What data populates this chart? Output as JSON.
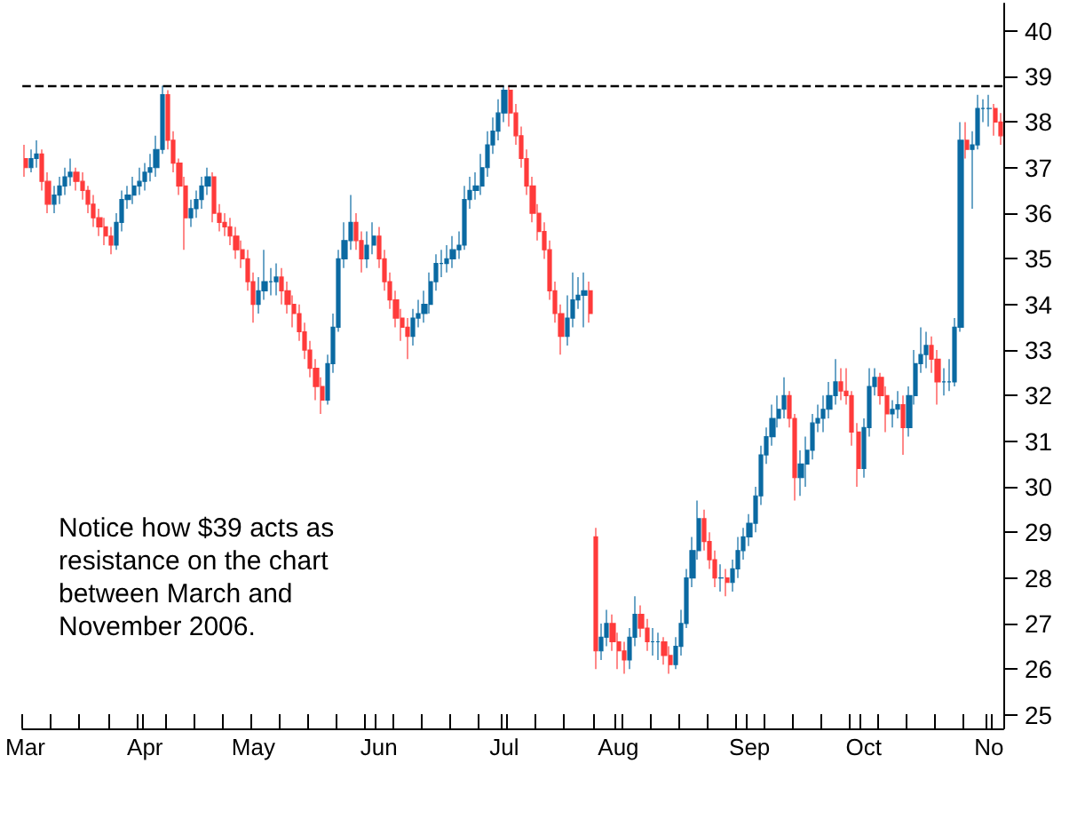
{
  "chart_data": {
    "type": "candlestick",
    "annotations": [
      "Notice how $39 acts as resistance on the chart between March and November 2006."
    ],
    "categories": [
      "Mar",
      null,
      null,
      null,
      null,
      null,
      null,
      null,
      null,
      null,
      null,
      null,
      null,
      null,
      null,
      null,
      null,
      null,
      null,
      null,
      null,
      "Apr",
      null,
      null,
      null,
      null,
      null,
      null,
      null,
      null,
      null,
      null,
      null,
      null,
      null,
      null,
      null,
      null,
      null,
      null,
      "May",
      null,
      null,
      null,
      null,
      null,
      null,
      null,
      null,
      null,
      null,
      null,
      null,
      null,
      null,
      null,
      null,
      null,
      null,
      null,
      null,
      null,
      "Jun",
      null,
      null,
      null,
      null,
      null,
      null,
      null,
      null,
      null,
      null,
      null,
      null,
      null,
      null,
      null,
      null,
      null,
      null,
      null,
      null,
      null,
      "Jul",
      null,
      null,
      null,
      null,
      null,
      null,
      null,
      null,
      null,
      null,
      null,
      null,
      null,
      null,
      null,
      null,
      null,
      null,
      null,
      "Aug",
      null,
      null,
      null,
      null,
      null,
      null,
      null,
      null,
      null,
      null,
      null,
      null,
      null,
      null,
      null,
      null,
      null,
      null,
      null,
      null,
      null,
      null,
      "Sep",
      null,
      null,
      null,
      null,
      null,
      null,
      null,
      null,
      null,
      null,
      null,
      null,
      null,
      null,
      null,
      null,
      null,
      null,
      null,
      "Oct",
      null,
      null,
      null,
      null,
      null,
      null,
      null,
      null,
      null,
      null,
      null,
      null,
      null,
      null,
      null,
      null,
      null,
      null,
      null,
      null,
      null,
      "No",
      null,
      null
    ],
    "ohlc": [
      [
        37.2,
        37.5,
        36.8,
        37.0
      ],
      [
        37.0,
        37.4,
        36.9,
        37.2
      ],
      [
        37.2,
        37.6,
        37.0,
        37.3
      ],
      [
        37.3,
        37.4,
        36.5,
        36.7
      ],
      [
        36.7,
        36.9,
        36.0,
        36.2
      ],
      [
        36.2,
        36.6,
        36.0,
        36.4
      ],
      [
        36.4,
        36.8,
        36.2,
        36.6
      ],
      [
        36.6,
        37.0,
        36.4,
        36.8
      ],
      [
        36.8,
        37.2,
        36.6,
        36.9
      ],
      [
        36.9,
        37.0,
        36.5,
        36.7
      ],
      [
        36.7,
        36.9,
        36.3,
        36.5
      ],
      [
        36.5,
        36.6,
        36.0,
        36.2
      ],
      [
        36.2,
        36.4,
        35.7,
        35.9
      ],
      [
        35.9,
        36.1,
        35.5,
        35.7
      ],
      [
        35.7,
        35.9,
        35.3,
        35.5
      ],
      [
        35.5,
        35.7,
        35.1,
        35.3
      ],
      [
        35.3,
        36.0,
        35.2,
        35.8
      ],
      [
        35.8,
        36.5,
        35.6,
        36.3
      ],
      [
        36.3,
        36.6,
        36.1,
        36.4
      ],
      [
        36.4,
        36.8,
        36.2,
        36.6
      ],
      [
        36.6,
        37.0,
        36.4,
        36.7
      ],
      [
        36.7,
        37.1,
        36.5,
        36.9
      ],
      [
        36.9,
        37.3,
        36.7,
        37.0
      ],
      [
        37.0,
        37.7,
        36.8,
        37.4
      ],
      [
        37.4,
        38.8,
        37.3,
        38.6
      ],
      [
        38.6,
        38.7,
        37.4,
        37.6
      ],
      [
        37.6,
        37.8,
        36.9,
        37.1
      ],
      [
        37.1,
        37.2,
        36.4,
        36.6
      ],
      [
        36.6,
        36.8,
        35.2,
        35.9
      ],
      [
        35.9,
        36.3,
        35.7,
        36.1
      ],
      [
        36.1,
        36.5,
        35.9,
        36.3
      ],
      [
        36.3,
        36.8,
        36.1,
        36.6
      ],
      [
        36.6,
        37.0,
        36.4,
        36.8
      ],
      [
        36.8,
        36.9,
        35.8,
        36.0
      ],
      [
        36.0,
        36.2,
        35.6,
        35.8
      ],
      [
        35.8,
        36.0,
        35.5,
        35.7
      ],
      [
        35.7,
        35.9,
        35.3,
        35.5
      ],
      [
        35.5,
        35.7,
        35.0,
        35.2
      ],
      [
        35.2,
        35.4,
        34.8,
        35.0
      ],
      [
        35.0,
        35.2,
        34.3,
        34.5
      ],
      [
        34.5,
        34.7,
        33.6,
        34.0
      ],
      [
        34.0,
        34.6,
        33.8,
        34.3
      ],
      [
        34.3,
        35.2,
        34.1,
        34.5
      ],
      [
        34.5,
        34.8,
        34.2,
        34.5
      ],
      [
        34.5,
        34.9,
        34.2,
        34.6
      ],
      [
        34.6,
        34.8,
        34.0,
        34.3
      ],
      [
        34.3,
        34.5,
        33.8,
        34.0
      ],
      [
        34.0,
        34.2,
        33.5,
        33.8
      ],
      [
        33.8,
        34.0,
        33.2,
        33.4
      ],
      [
        33.4,
        33.6,
        32.8,
        33.0
      ],
      [
        33.0,
        33.2,
        32.4,
        32.6
      ],
      [
        32.6,
        32.8,
        31.9,
        32.2
      ],
      [
        32.2,
        32.4,
        31.6,
        31.9
      ],
      [
        31.9,
        32.9,
        31.8,
        32.7
      ],
      [
        32.7,
        33.8,
        32.5,
        33.5
      ],
      [
        33.5,
        35.2,
        33.4,
        35.0
      ],
      [
        35.0,
        35.8,
        34.8,
        35.4
      ],
      [
        35.4,
        36.4,
        35.2,
        35.8
      ],
      [
        35.8,
        36.0,
        35.2,
        35.4
      ],
      [
        35.4,
        35.6,
        34.7,
        35.0
      ],
      [
        35.0,
        35.6,
        34.8,
        35.3
      ],
      [
        35.3,
        35.8,
        35.1,
        35.5
      ],
      [
        35.5,
        35.7,
        34.8,
        35.0
      ],
      [
        35.0,
        35.2,
        34.3,
        34.5
      ],
      [
        34.5,
        34.7,
        33.9,
        34.1
      ],
      [
        34.1,
        34.3,
        33.5,
        33.7
      ],
      [
        33.7,
        33.9,
        33.2,
        33.5
      ],
      [
        33.5,
        33.7,
        32.8,
        33.3
      ],
      [
        33.3,
        33.9,
        33.1,
        33.7
      ],
      [
        33.7,
        34.1,
        33.5,
        33.8
      ],
      [
        33.8,
        34.3,
        33.6,
        34.0
      ],
      [
        34.0,
        34.7,
        33.8,
        34.5
      ],
      [
        34.5,
        35.1,
        34.3,
        34.9
      ],
      [
        34.9,
        35.2,
        34.6,
        34.9
      ],
      [
        34.9,
        35.3,
        34.7,
        35.0
      ],
      [
        35.0,
        35.5,
        34.8,
        35.2
      ],
      [
        35.2,
        35.6,
        35.0,
        35.3
      ],
      [
        35.3,
        36.6,
        35.2,
        36.3
      ],
      [
        36.3,
        36.8,
        36.1,
        36.5
      ],
      [
        36.5,
        36.9,
        36.3,
        36.6
      ],
      [
        36.6,
        37.3,
        36.4,
        37.0
      ],
      [
        37.0,
        37.8,
        36.8,
        37.5
      ],
      [
        37.5,
        38.1,
        37.3,
        37.8
      ],
      [
        37.8,
        38.5,
        37.6,
        38.2
      ],
      [
        38.2,
        38.8,
        38.0,
        38.7
      ],
      [
        38.7,
        38.8,
        37.9,
        38.2
      ],
      [
        38.2,
        38.4,
        37.5,
        37.7
      ],
      [
        37.7,
        37.9,
        37.0,
        37.2
      ],
      [
        37.2,
        37.4,
        36.4,
        36.6
      ],
      [
        36.6,
        36.8,
        35.8,
        36.0
      ],
      [
        36.0,
        36.2,
        35.4,
        35.6
      ],
      [
        35.6,
        35.8,
        35.0,
        35.2
      ],
      [
        35.2,
        35.4,
        34.1,
        34.3
      ],
      [
        34.3,
        34.5,
        33.6,
        33.8
      ],
      [
        33.8,
        34.0,
        32.9,
        33.3
      ],
      [
        33.3,
        34.2,
        33.1,
        33.7
      ],
      [
        33.7,
        34.7,
        33.5,
        34.1
      ],
      [
        34.1,
        34.6,
        33.9,
        34.2
      ],
      [
        34.2,
        34.7,
        33.5,
        34.3
      ],
      [
        34.3,
        34.5,
        33.6,
        33.8
      ],
      [
        28.9,
        29.1,
        26.0,
        26.4
      ],
      [
        26.4,
        27.0,
        26.2,
        26.7
      ],
      [
        26.7,
        27.3,
        26.5,
        27.0
      ],
      [
        27.0,
        27.2,
        26.4,
        26.6
      ],
      [
        26.6,
        26.8,
        26.0,
        26.4
      ],
      [
        26.4,
        26.6,
        25.9,
        26.2
      ],
      [
        26.2,
        26.9,
        26.0,
        26.7
      ],
      [
        26.7,
        27.6,
        26.5,
        27.2
      ],
      [
        27.2,
        27.4,
        26.7,
        26.9
      ],
      [
        26.9,
        27.1,
        26.4,
        26.6
      ],
      [
        26.6,
        26.9,
        26.3,
        26.6
      ],
      [
        26.6,
        26.8,
        26.2,
        26.6
      ],
      [
        26.6,
        26.7,
        26.1,
        26.3
      ],
      [
        26.3,
        26.5,
        25.9,
        26.1
      ],
      [
        26.1,
        26.7,
        26.0,
        26.5
      ],
      [
        26.5,
        27.3,
        26.3,
        27.0
      ],
      [
        27.0,
        28.2,
        26.9,
        28.0
      ],
      [
        28.0,
        28.9,
        27.8,
        28.6
      ],
      [
        28.6,
        29.7,
        28.4,
        29.3
      ],
      [
        29.3,
        29.5,
        28.6,
        28.8
      ],
      [
        28.8,
        29.0,
        28.2,
        28.4
      ],
      [
        28.4,
        28.6,
        27.8,
        28.0
      ],
      [
        28.0,
        28.3,
        27.7,
        28.0
      ],
      [
        28.0,
        28.2,
        27.6,
        27.9
      ],
      [
        27.9,
        28.4,
        27.7,
        28.2
      ],
      [
        28.2,
        28.9,
        28.0,
        28.6
      ],
      [
        28.6,
        29.1,
        28.4,
        28.9
      ],
      [
        28.9,
        29.4,
        28.7,
        29.2
      ],
      [
        29.2,
        30.0,
        29.0,
        29.8
      ],
      [
        29.8,
        30.9,
        29.6,
        30.7
      ],
      [
        30.7,
        31.3,
        30.5,
        31.1
      ],
      [
        31.1,
        31.8,
        30.9,
        31.5
      ],
      [
        31.5,
        32.0,
        31.3,
        31.7
      ],
      [
        31.7,
        32.4,
        31.5,
        32.0
      ],
      [
        32.0,
        32.1,
        31.3,
        31.5
      ],
      [
        31.5,
        31.6,
        29.7,
        30.2
      ],
      [
        30.2,
        30.8,
        29.8,
        30.5
      ],
      [
        30.5,
        31.1,
        30.0,
        30.8
      ],
      [
        30.8,
        31.6,
        30.6,
        31.4
      ],
      [
        31.4,
        31.8,
        31.2,
        31.5
      ],
      [
        31.5,
        32.0,
        31.2,
        31.7
      ],
      [
        31.7,
        32.3,
        31.5,
        32.0
      ],
      [
        32.0,
        32.8,
        31.8,
        32.3
      ],
      [
        32.3,
        32.6,
        31.9,
        32.1
      ],
      [
        32.1,
        32.6,
        31.8,
        32.0
      ],
      [
        32.0,
        32.1,
        30.9,
        31.2
      ],
      [
        31.2,
        31.4,
        30.0,
        30.4
      ],
      [
        30.4,
        31.5,
        30.2,
        31.3
      ],
      [
        31.3,
        32.6,
        31.1,
        32.2
      ],
      [
        32.2,
        32.6,
        32.0,
        32.4
      ],
      [
        32.4,
        32.5,
        31.8,
        32.0
      ],
      [
        32.0,
        32.2,
        31.2,
        31.6
      ],
      [
        31.6,
        31.9,
        31.3,
        31.7
      ],
      [
        31.7,
        32.1,
        31.5,
        31.8
      ],
      [
        31.8,
        32.0,
        30.7,
        31.3
      ],
      [
        31.3,
        32.2,
        31.1,
        32.0
      ],
      [
        32.0,
        33.0,
        31.8,
        32.7
      ],
      [
        32.7,
        33.5,
        32.5,
        32.9
      ],
      [
        32.9,
        33.4,
        32.6,
        33.1
      ],
      [
        33.1,
        33.3,
        32.5,
        32.8
      ],
      [
        32.8,
        33.0,
        31.8,
        32.3
      ],
      [
        32.3,
        32.6,
        32.0,
        32.3
      ],
      [
        32.3,
        32.8,
        32.1,
        32.3
      ],
      [
        32.3,
        33.7,
        32.2,
        33.5
      ],
      [
        33.5,
        38.0,
        33.4,
        37.6
      ],
      [
        37.6,
        38.0,
        37.2,
        37.4
      ],
      [
        37.4,
        37.8,
        36.1,
        37.5
      ],
      [
        37.5,
        38.6,
        37.4,
        38.3
      ],
      [
        38.3,
        38.5,
        38.0,
        38.3
      ],
      [
        38.3,
        38.6,
        37.9,
        38.3
      ],
      [
        38.3,
        38.4,
        37.7,
        38.0
      ],
      [
        38.0,
        38.2,
        37.5,
        37.7
      ]
    ],
    "colors": [
      "#ff3b3b",
      "#0b6aa2",
      "#0b6aa2",
      "#ff3b3b",
      "#ff3b3b",
      "#0b6aa2",
      "#0b6aa2",
      "#0b6aa2",
      "#0b6aa2",
      "#ff3b3b",
      "#ff3b3b",
      "#ff3b3b",
      "#ff3b3b",
      "#ff3b3b",
      "#ff3b3b",
      "#ff3b3b",
      "#0b6aa2",
      "#0b6aa2",
      "#0b6aa2",
      "#0b6aa2",
      "#0b6aa2",
      "#0b6aa2",
      "#0b6aa2",
      "#0b6aa2",
      "#0b6aa2",
      "#ff3b3b",
      "#ff3b3b",
      "#ff3b3b",
      "#ff3b3b",
      "#0b6aa2",
      "#0b6aa2",
      "#0b6aa2",
      "#0b6aa2",
      "#ff3b3b",
      "#ff3b3b",
      "#ff3b3b",
      "#ff3b3b",
      "#ff3b3b",
      "#ff3b3b",
      "#ff3b3b",
      "#ff3b3b",
      "#0b6aa2",
      "#0b6aa2",
      "#0b6aa2",
      "#0b6aa2",
      "#ff3b3b",
      "#ff3b3b",
      "#ff3b3b",
      "#ff3b3b",
      "#ff3b3b",
      "#ff3b3b",
      "#ff3b3b",
      "#ff3b3b",
      "#0b6aa2",
      "#0b6aa2",
      "#0b6aa2",
      "#0b6aa2",
      "#0b6aa2",
      "#ff3b3b",
      "#ff3b3b",
      "#0b6aa2",
      "#0b6aa2",
      "#ff3b3b",
      "#ff3b3b",
      "#ff3b3b",
      "#ff3b3b",
      "#ff3b3b",
      "#ff3b3b",
      "#0b6aa2",
      "#0b6aa2",
      "#0b6aa2",
      "#0b6aa2",
      "#0b6aa2",
      "#0b6aa2",
      "#0b6aa2",
      "#0b6aa2",
      "#0b6aa2",
      "#0b6aa2",
      "#0b6aa2",
      "#0b6aa2",
      "#0b6aa2",
      "#0b6aa2",
      "#0b6aa2",
      "#0b6aa2",
      "#0b6aa2",
      "#ff3b3b",
      "#ff3b3b",
      "#ff3b3b",
      "#ff3b3b",
      "#ff3b3b",
      "#ff3b3b",
      "#ff3b3b",
      "#ff3b3b",
      "#ff3b3b",
      "#ff3b3b",
      "#0b6aa2",
      "#0b6aa2",
      "#0b6aa2",
      "#0b6aa2",
      "#ff3b3b",
      "#ff3b3b",
      "#0b6aa2",
      "#0b6aa2",
      "#ff3b3b",
      "#ff3b3b",
      "#ff3b3b",
      "#0b6aa2",
      "#0b6aa2",
      "#ff3b3b",
      "#ff3b3b",
      "#0b6aa2",
      "#0b6aa2",
      "#ff3b3b",
      "#ff3b3b",
      "#0b6aa2",
      "#0b6aa2",
      "#0b6aa2",
      "#0b6aa2",
      "#0b6aa2",
      "#ff3b3b",
      "#ff3b3b",
      "#ff3b3b",
      "#0b6aa2",
      "#ff3b3b",
      "#0b6aa2",
      "#0b6aa2",
      "#0b6aa2",
      "#0b6aa2",
      "#0b6aa2",
      "#0b6aa2",
      "#0b6aa2",
      "#0b6aa2",
      "#0b6aa2",
      "#0b6aa2",
      "#ff3b3b",
      "#ff3b3b",
      "#0b6aa2",
      "#0b6aa2",
      "#0b6aa2",
      "#0b6aa2",
      "#0b6aa2",
      "#0b6aa2",
      "#0b6aa2",
      "#ff3b3b",
      "#ff3b3b",
      "#ff3b3b",
      "#ff3b3b",
      "#0b6aa2",
      "#0b6aa2",
      "#0b6aa2",
      "#ff3b3b",
      "#ff3b3b",
      "#0b6aa2",
      "#0b6aa2",
      "#ff3b3b",
      "#0b6aa2",
      "#0b6aa2",
      "#0b6aa2",
      "#0b6aa2",
      "#ff3b3b",
      "#ff3b3b",
      "#0b6aa2",
      "#0b6aa2",
      "#0b6aa2",
      "#0b6aa2",
      "#ff3b3b",
      "#0b6aa2",
      "#0b6aa2",
      "#0b6aa2",
      "#0b6aa2",
      "#ff3b3b",
      "#ff3b3b"
    ],
    "ylim": [
      24.7,
      40.6
    ],
    "yticks": [
      25,
      26,
      27,
      28,
      29,
      30,
      31,
      32,
      33,
      34,
      35,
      36,
      37,
      38,
      39,
      40
    ],
    "ref_lines": [
      {
        "axis": "y",
        "value": 38.8,
        "color": "#000000",
        "line_style": "dashed"
      }
    ],
    "grid": false
  }
}
